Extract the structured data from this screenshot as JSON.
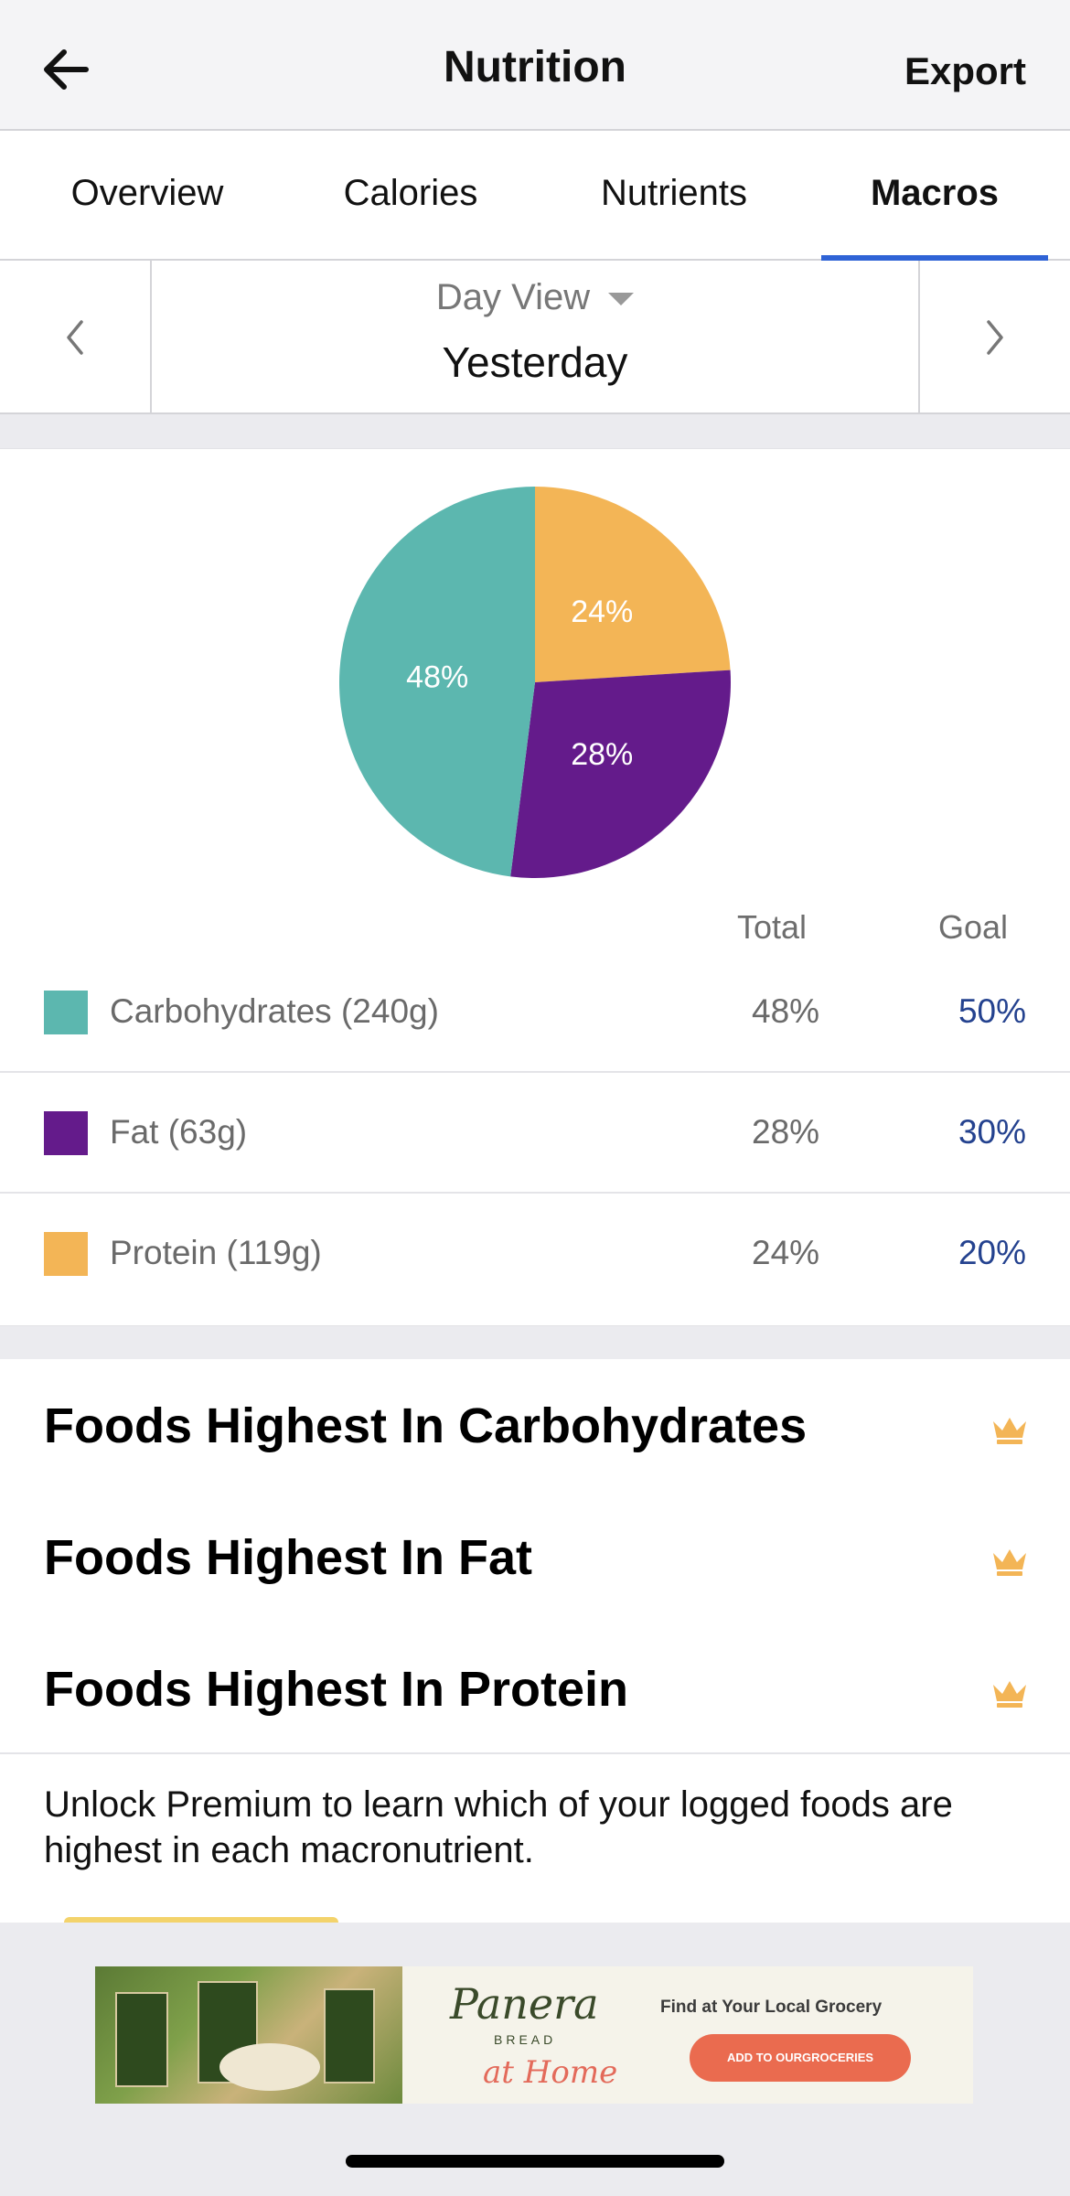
{
  "header": {
    "title": "Nutrition",
    "export_label": "Export"
  },
  "tabs": [
    {
      "label": "Overview",
      "active": false
    },
    {
      "label": "Calories",
      "active": false
    },
    {
      "label": "Nutrients",
      "active": false
    },
    {
      "label": "Macros",
      "active": true
    }
  ],
  "day_selector": {
    "mode_label": "Day View",
    "value": "Yesterday"
  },
  "chart_data": {
    "type": "pie",
    "slices": [
      {
        "label": "Protein",
        "value": 24,
        "color": "#f3b556"
      },
      {
        "label": "Fat",
        "value": 28,
        "color": "#641b8b"
      },
      {
        "label": "Carbohydrates",
        "value": 48,
        "color": "#5cb7af"
      }
    ],
    "slice_labels": [
      "24%",
      "28%",
      "48%"
    ]
  },
  "macros": {
    "col_total": "Total",
    "col_goal": "Goal",
    "rows": [
      {
        "label": "Carbohydrates (240g)",
        "total": "48%",
        "goal": "50%",
        "color": "#5cb7af"
      },
      {
        "label": "Fat (63g)",
        "total": "28%",
        "goal": "30%",
        "color": "#641b8b"
      },
      {
        "label": "Protein (119g)",
        "total": "24%",
        "goal": "20%",
        "color": "#f3b556"
      }
    ]
  },
  "foods": {
    "items": [
      {
        "title": "Foods Highest In Carbohydrates"
      },
      {
        "title": "Foods Highest In Fat"
      },
      {
        "title": "Foods Highest In Protein"
      }
    ],
    "premium_text": "Unlock Premium to learn which of your logged foods are highest in each macronutrient."
  },
  "ad": {
    "brand": "Panera",
    "brand_sub": "BREAD",
    "brand_home": "at Home",
    "tagline": "Find at Your Local Grocery",
    "cta": "ADD TO OURGROCERIES"
  },
  "colors": {
    "accent": "#2f63d6",
    "goal_text": "#24428f",
    "crown": "#f3b556"
  }
}
